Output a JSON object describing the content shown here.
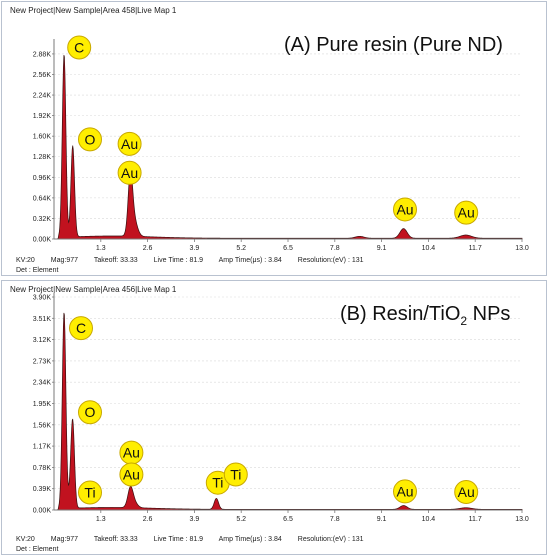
{
  "chart_data": [
    {
      "type": "line",
      "window_title": "New Project|New Sample|Area 458|Live Map 1",
      "title": "(A) Pure resin (Pure ND)",
      "xlim": [
        0,
        13.0
      ],
      "ylim": [
        0,
        3.05
      ],
      "xticks": [
        "1.3",
        "2.6",
        "3.9",
        "5.2",
        "6.5",
        "7.8",
        "9.1",
        "10.4",
        "11.7",
        "13.0"
      ],
      "yticks": [
        "0.00K",
        "0.32K",
        "0.64K",
        "0.96K",
        "1.28K",
        "1.60K",
        "1.92K",
        "2.24K",
        "2.56K",
        "2.88K"
      ],
      "peaks": [
        {
          "x": 0.28,
          "y": 2.85,
          "w": 0.05
        },
        {
          "x": 0.52,
          "y": 1.42,
          "w": 0.05
        },
        {
          "x": 2.12,
          "y": 0.82,
          "w": 0.06
        },
        {
          "x": 2.2,
          "y": 0.3,
          "w": 0.1
        },
        {
          "x": 9.71,
          "y": 0.15,
          "w": 0.1
        },
        {
          "x": 11.44,
          "y": 0.05,
          "w": 0.16
        },
        {
          "x": 8.49,
          "y": 0.03,
          "w": 0.12
        }
      ],
      "labels": [
        {
          "text": "C",
          "x": 0.7,
          "y": 2.98
        },
        {
          "text": "O",
          "x": 1.0,
          "y": 1.55
        },
        {
          "text": "Au",
          "x": 2.1,
          "y": 1.48
        },
        {
          "text": "Au",
          "x": 2.1,
          "y": 1.03
        },
        {
          "text": "Au",
          "x": 9.75,
          "y": 0.46
        },
        {
          "text": "Au",
          "x": 11.45,
          "y": 0.41
        }
      ],
      "footer": {
        "kv": "KV:20",
        "mag": "Mag:977",
        "takeoff": "Takeoff: 33.33",
        "live_time": "Live Time : 81.9",
        "amp_time": "Amp Time(μs) : 3.84",
        "resolution": "Resolution:(eV) : 131",
        "det": "Det : Element"
      }
    },
    {
      "type": "line",
      "window_title": "New Project|New Sample|Area 456|Live Map 1",
      "title": "(B) Resin/TiO",
      "title_sub": "2",
      "title_tail": " NPs",
      "xlim": [
        0,
        13.0
      ],
      "ylim": [
        0,
        3.9
      ],
      "xticks": [
        "1.3",
        "2.6",
        "3.9",
        "5.2",
        "6.5",
        "7.8",
        "9.1",
        "10.4",
        "11.7",
        "13.0"
      ],
      "yticks": [
        "0.00K",
        "0.39K",
        "0.78K",
        "1.17K",
        "1.56K",
        "1.95K",
        "2.34K",
        "2.73K",
        "3.12K",
        "3.51K",
        "3.90K"
      ],
      "peaks": [
        {
          "x": 0.28,
          "y": 3.6,
          "w": 0.05
        },
        {
          "x": 0.52,
          "y": 1.55,
          "w": 0.05
        },
        {
          "x": 0.45,
          "y": 0.22,
          "w": 0.05
        },
        {
          "x": 2.12,
          "y": 0.3,
          "w": 0.07
        },
        {
          "x": 2.2,
          "y": 0.12,
          "w": 0.1
        },
        {
          "x": 4.51,
          "y": 0.2,
          "w": 0.06
        },
        {
          "x": 9.71,
          "y": 0.07,
          "w": 0.1
        },
        {
          "x": 11.44,
          "y": 0.03,
          "w": 0.16
        }
      ],
      "labels": [
        {
          "text": "C",
          "x": 0.75,
          "y": 3.33
        },
        {
          "text": "O",
          "x": 1.0,
          "y": 1.79
        },
        {
          "text": "Ti",
          "x": 1.0,
          "y": 0.32
        },
        {
          "text": "Au",
          "x": 2.15,
          "y": 1.05
        },
        {
          "text": "Au",
          "x": 2.15,
          "y": 0.65
        },
        {
          "text": "Ti",
          "x": 4.55,
          "y": 0.5
        },
        {
          "text": "Ti",
          "x": 5.05,
          "y": 0.65
        },
        {
          "text": "Au",
          "x": 9.75,
          "y": 0.34
        },
        {
          "text": "Au",
          "x": 11.45,
          "y": 0.33
        }
      ],
      "footer": {
        "kv": "KV:20",
        "mag": "Mag:977",
        "takeoff": "Takeoff: 33.33",
        "live_time": "Live Time : 81.9",
        "amp_time": "Amp Time(μs) : 3.84",
        "resolution": "Resolution:(eV) : 131",
        "det": "Det : Element"
      }
    }
  ],
  "colors": {
    "spectrum_fill": "#c1121f",
    "spectrum_dark": "#3a1010",
    "label_fill": "#ffee00",
    "label_stroke": "#c8a800",
    "axis": "#7a7a7a",
    "grid": "#d9d9d9"
  }
}
